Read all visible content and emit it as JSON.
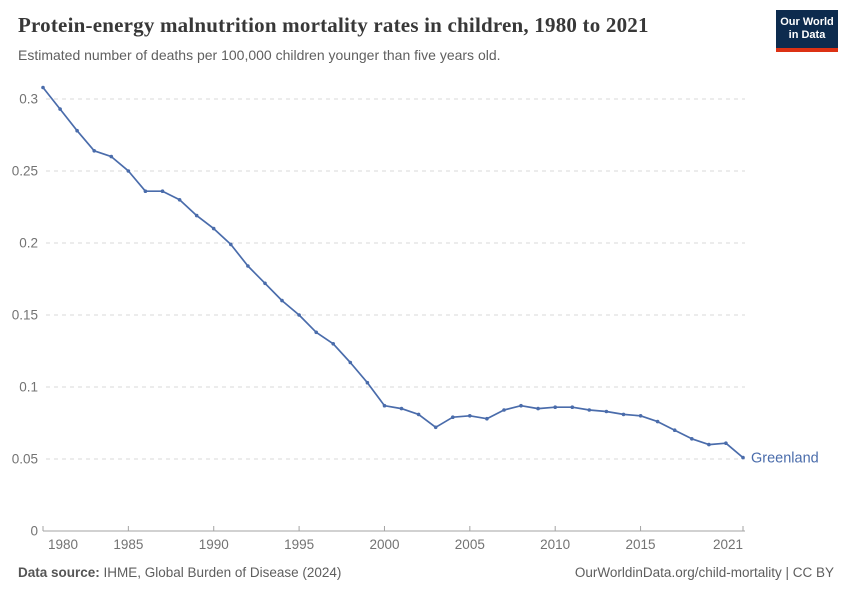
{
  "header": {
    "title": "Protein-energy malnutrition mortality rates in children, 1980 to 2021",
    "subtitle": "Estimated number of deaths per 100,000 children younger than five years old."
  },
  "logo": {
    "line1": "Our World",
    "line2": "in Data"
  },
  "colors": {
    "line": "#4a6cab",
    "logo_bg": "#0d2b4e",
    "logo_red": "#dc3114",
    "gridline": "#dadada",
    "axis": "#a3a3a3",
    "tick_label": "#737373",
    "title_text": "#383838",
    "subtitle_text": "#5f5f5f"
  },
  "chart_data": {
    "type": "line",
    "title": "Protein-energy malnutrition mortality rates in children, 1980 to 2021",
    "subtitle": "Estimated number of deaths per 100,000 children younger than five years old.",
    "xlabel": "",
    "ylabel": "",
    "xlim": [
      1980,
      2021
    ],
    "ylim": [
      0,
      0.3
    ],
    "xticks": [
      1980,
      1985,
      1990,
      1995,
      2000,
      2005,
      2010,
      2015,
      2021
    ],
    "yticks": [
      0,
      0.05,
      0.1,
      0.15,
      0.2,
      0.25,
      0.3
    ],
    "grid": "horizontal-dashed",
    "legend_position": "end-of-line-label",
    "series": [
      {
        "name": "Greenland",
        "color": "#4a6cab",
        "x": [
          1980,
          1981,
          1982,
          1983,
          1984,
          1985,
          1986,
          1987,
          1988,
          1989,
          1990,
          1991,
          1992,
          1993,
          1994,
          1995,
          1996,
          1997,
          1998,
          1999,
          2000,
          2001,
          2002,
          2003,
          2004,
          2005,
          2006,
          2007,
          2008,
          2009,
          2010,
          2011,
          2012,
          2013,
          2014,
          2015,
          2016,
          2017,
          2018,
          2019,
          2020,
          2021
        ],
        "values": [
          0.308,
          0.293,
          0.278,
          0.264,
          0.26,
          0.25,
          0.236,
          0.236,
          0.23,
          0.219,
          0.21,
          0.199,
          0.184,
          0.172,
          0.16,
          0.15,
          0.138,
          0.13,
          0.117,
          0.103,
          0.087,
          0.085,
          0.081,
          0.072,
          0.079,
          0.08,
          0.078,
          0.084,
          0.087,
          0.085,
          0.086,
          0.086,
          0.084,
          0.083,
          0.081,
          0.08,
          0.076,
          0.07,
          0.064,
          0.06,
          0.061,
          0.051
        ]
      }
    ]
  },
  "footer": {
    "source_label": "Data source:",
    "source_text": " IHME, Global Burden of Disease (2024)",
    "credit": "OurWorldinData.org/child-mortality | CC BY"
  }
}
